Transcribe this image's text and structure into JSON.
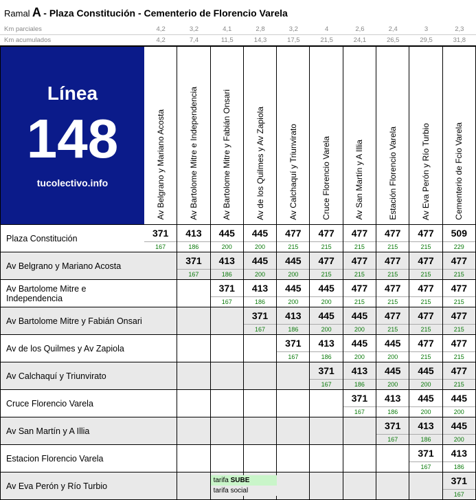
{
  "title": {
    "ramal_prefix": "Ramal",
    "ramal_letter": "A",
    "route": " - Plaza Constitución - Cementerio de Florencio Varela"
  },
  "km": {
    "parciales_label": "Km parciales",
    "acumulados_label": "Km acumulados",
    "parciales": [
      "4,2",
      "3,2",
      "4,1",
      "2,8",
      "3,2",
      "4",
      "2,6",
      "2,4",
      "3",
      "2,3"
    ],
    "acumulados": [
      "4,2",
      "7,4",
      "11,5",
      "14,3",
      "17,5",
      "21,5",
      "24,1",
      "26,5",
      "29,5",
      "31,8"
    ]
  },
  "brand": {
    "linea": "Línea",
    "number": "148",
    "site": "tucolectivo.info",
    "bg": "#0b1b8a"
  },
  "stops": [
    "Av Belgrano y Mariano Acosta",
    "Av Bartolome Mitre e Independencia",
    "Av Bartolome Mitre y Fabián Onsari",
    "Av de los Quilmes y Av Zapiola",
    "Av Calchaquí y Triunvirato",
    "Cruce Florencio Varela",
    "Av San Martín y A Illia",
    "Estación Florencio Varela",
    "Av Eva Perón y Río Turbio",
    "Cementerio de Fcio Varela"
  ],
  "row_stops": [
    "Plaza Constitución",
    "Av Belgrano y Mariano Acosta",
    "Av Bartolome Mitre e Independencia",
    "Av Bartolome Mitre y Fabián Onsari",
    "Av de los Quilmes y Av Zapiola",
    "Av Calchaquí y Triunvirato",
    "Cruce Florencio Varela",
    "Av San Martín y A Illia",
    "Estacion Florencio Varela",
    "Av Eva Perón y Río Turbio"
  ],
  "fares": [
    [
      "371",
      "413",
      "445",
      "445",
      "477",
      "477",
      "477",
      "477",
      "477",
      "509"
    ],
    [
      "",
      "371",
      "413",
      "445",
      "445",
      "477",
      "477",
      "477",
      "477",
      "477"
    ],
    [
      "",
      "",
      "371",
      "413",
      "445",
      "445",
      "477",
      "477",
      "477",
      "477"
    ],
    [
      "",
      "",
      "",
      "371",
      "413",
      "445",
      "445",
      "477",
      "477",
      "477"
    ],
    [
      "",
      "",
      "",
      "",
      "371",
      "413",
      "445",
      "445",
      "477",
      "477"
    ],
    [
      "",
      "",
      "",
      "",
      "",
      "371",
      "413",
      "445",
      "445",
      "477"
    ],
    [
      "",
      "",
      "",
      "",
      "",
      "",
      "371",
      "413",
      "445",
      "445"
    ],
    [
      "",
      "",
      "",
      "",
      "",
      "",
      "",
      "371",
      "413",
      "445"
    ],
    [
      "",
      "",
      "",
      "",
      "",
      "",
      "",
      "",
      "371",
      "413"
    ],
    [
      "",
      "",
      "",
      "",
      "",
      "",
      "",
      "",
      "",
      "371"
    ]
  ],
  "subs": [
    [
      "167",
      "186",
      "200",
      "200",
      "215",
      "215",
      "215",
      "215",
      "215",
      "229"
    ],
    [
      "",
      "167",
      "186",
      "200",
      "200",
      "215",
      "215",
      "215",
      "215",
      "215"
    ],
    [
      "",
      "",
      "167",
      "186",
      "200",
      "200",
      "215",
      "215",
      "215",
      "215"
    ],
    [
      "",
      "",
      "",
      "167",
      "186",
      "200",
      "200",
      "215",
      "215",
      "215"
    ],
    [
      "",
      "",
      "",
      "",
      "167",
      "186",
      "200",
      "200",
      "215",
      "215"
    ],
    [
      "",
      "",
      "",
      "",
      "",
      "167",
      "186",
      "200",
      "200",
      "215"
    ],
    [
      "",
      "",
      "",
      "",
      "",
      "",
      "167",
      "186",
      "200",
      "200"
    ],
    [
      "",
      "",
      "",
      "",
      "",
      "",
      "",
      "167",
      "186",
      "200"
    ],
    [
      "",
      "",
      "",
      "",
      "",
      "",
      "",
      "",
      "167",
      "186"
    ],
    [
      "",
      "",
      "",
      "",
      "",
      "",
      "",
      "",
      "",
      "167"
    ]
  ],
  "legend": {
    "sube_prefix": "tarifa ",
    "sube_bold": "SUBE",
    "social": "tarifa social"
  },
  "colors": {
    "sub_text": "#0a7a0a",
    "alt_row": "#e9e9e9",
    "legend_sube_bg": "#c9f5c9"
  }
}
